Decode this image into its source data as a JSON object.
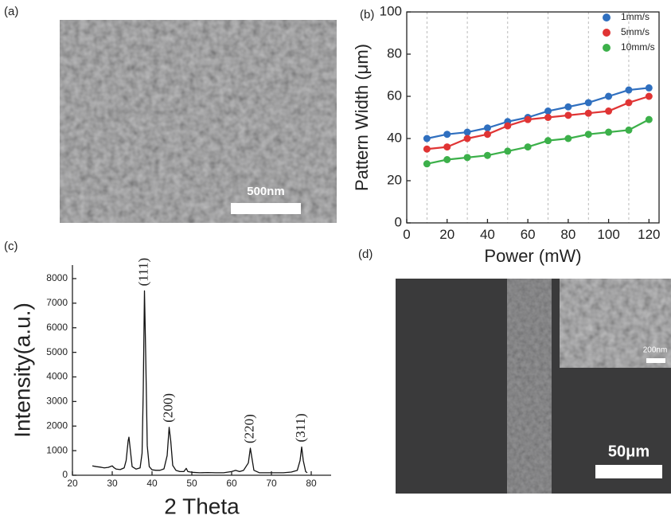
{
  "panel_labels": [
    "(a)",
    "(b)",
    "(c)",
    "(d)"
  ],
  "images": {
    "a": {
      "scale_bar": "500nm"
    },
    "d": {
      "scale_bar": "50μm",
      "inset_scale_bar": "200nm"
    }
  },
  "chart_data": [
    {
      "type": "line",
      "xlabel": "Power (mW)",
      "ylabel": "Pattern Width (μm)",
      "x": [
        10,
        20,
        30,
        40,
        50,
        60,
        70,
        80,
        90,
        100,
        110,
        120
      ],
      "series": [
        {
          "name": "1mm/s",
          "color": "#2f6fbf",
          "values": [
            40,
            42,
            43,
            45,
            48,
            50,
            53,
            55,
            57,
            60,
            63,
            64
          ]
        },
        {
          "name": "5mm/s",
          "color": "#e03434",
          "values": [
            35,
            36,
            40,
            42,
            46,
            49,
            50,
            51,
            52,
            53,
            57,
            60
          ]
        },
        {
          "name": "10mm/s",
          "color": "#3cb04a",
          "values": [
            28,
            30,
            31,
            32,
            34,
            36,
            39,
            40,
            42,
            43,
            44,
            49
          ]
        }
      ],
      "markers": true,
      "legend": "upper right",
      "xlim": [
        0,
        125
      ],
      "ylim": [
        0,
        100
      ],
      "xticks": [
        0,
        20,
        40,
        60,
        80,
        100,
        120
      ],
      "yticks": [
        0,
        20,
        40,
        60,
        80,
        100
      ],
      "xgrid": [
        10,
        30,
        50,
        70,
        90,
        110
      ]
    },
    {
      "type": "line",
      "xlabel": "2 Theta",
      "ylabel": "Intensity(a.u.)",
      "color": "#111111",
      "x": [
        25,
        26,
        27,
        28,
        29,
        30,
        30.5,
        31,
        32,
        33,
        33.5,
        34,
        34.2,
        34.5,
        35,
        36,
        37,
        37.5,
        37.8,
        38.1,
        38.4,
        38.8,
        39.3,
        40,
        41,
        42,
        43,
        43.8,
        44.3,
        44.7,
        45.2,
        46,
        47,
        48,
        48.6,
        49,
        50,
        52,
        54,
        56,
        58,
        60,
        61,
        62,
        63,
        64.2,
        64.7,
        65.1,
        65.6,
        67,
        70,
        73,
        75,
        76.5,
        77.2,
        77.6,
        78,
        78.6,
        79
      ],
      "values": [
        380,
        350,
        330,
        300,
        320,
        380,
        300,
        250,
        230,
        300,
        600,
        1400,
        1550,
        1100,
        350,
        250,
        300,
        900,
        3500,
        7500,
        5000,
        1200,
        350,
        220,
        200,
        200,
        260,
        800,
        1950,
        1400,
        400,
        200,
        150,
        150,
        280,
        150,
        120,
        100,
        110,
        100,
        100,
        150,
        200,
        150,
        200,
        500,
        1100,
        700,
        200,
        100,
        100,
        100,
        130,
        200,
        600,
        1150,
        600,
        150,
        100
      ],
      "annotations": [
        {
          "text": "(111)",
          "x": 38.1,
          "y": 7500
        },
        {
          "text": "(200)",
          "x": 44.3,
          "y": 1950
        },
        {
          "text": "(220)",
          "x": 64.7,
          "y": 1100
        },
        {
          "text": "(311)",
          "x": 77.6,
          "y": 1150
        }
      ],
      "xlim": [
        20,
        85
      ],
      "ylim": [
        0,
        8550
      ],
      "xticks": [
        20,
        30,
        40,
        50,
        60,
        70,
        80
      ],
      "yticks": [
        0,
        1000,
        2000,
        3000,
        4000,
        5000,
        6000,
        7000,
        8000
      ]
    }
  ]
}
